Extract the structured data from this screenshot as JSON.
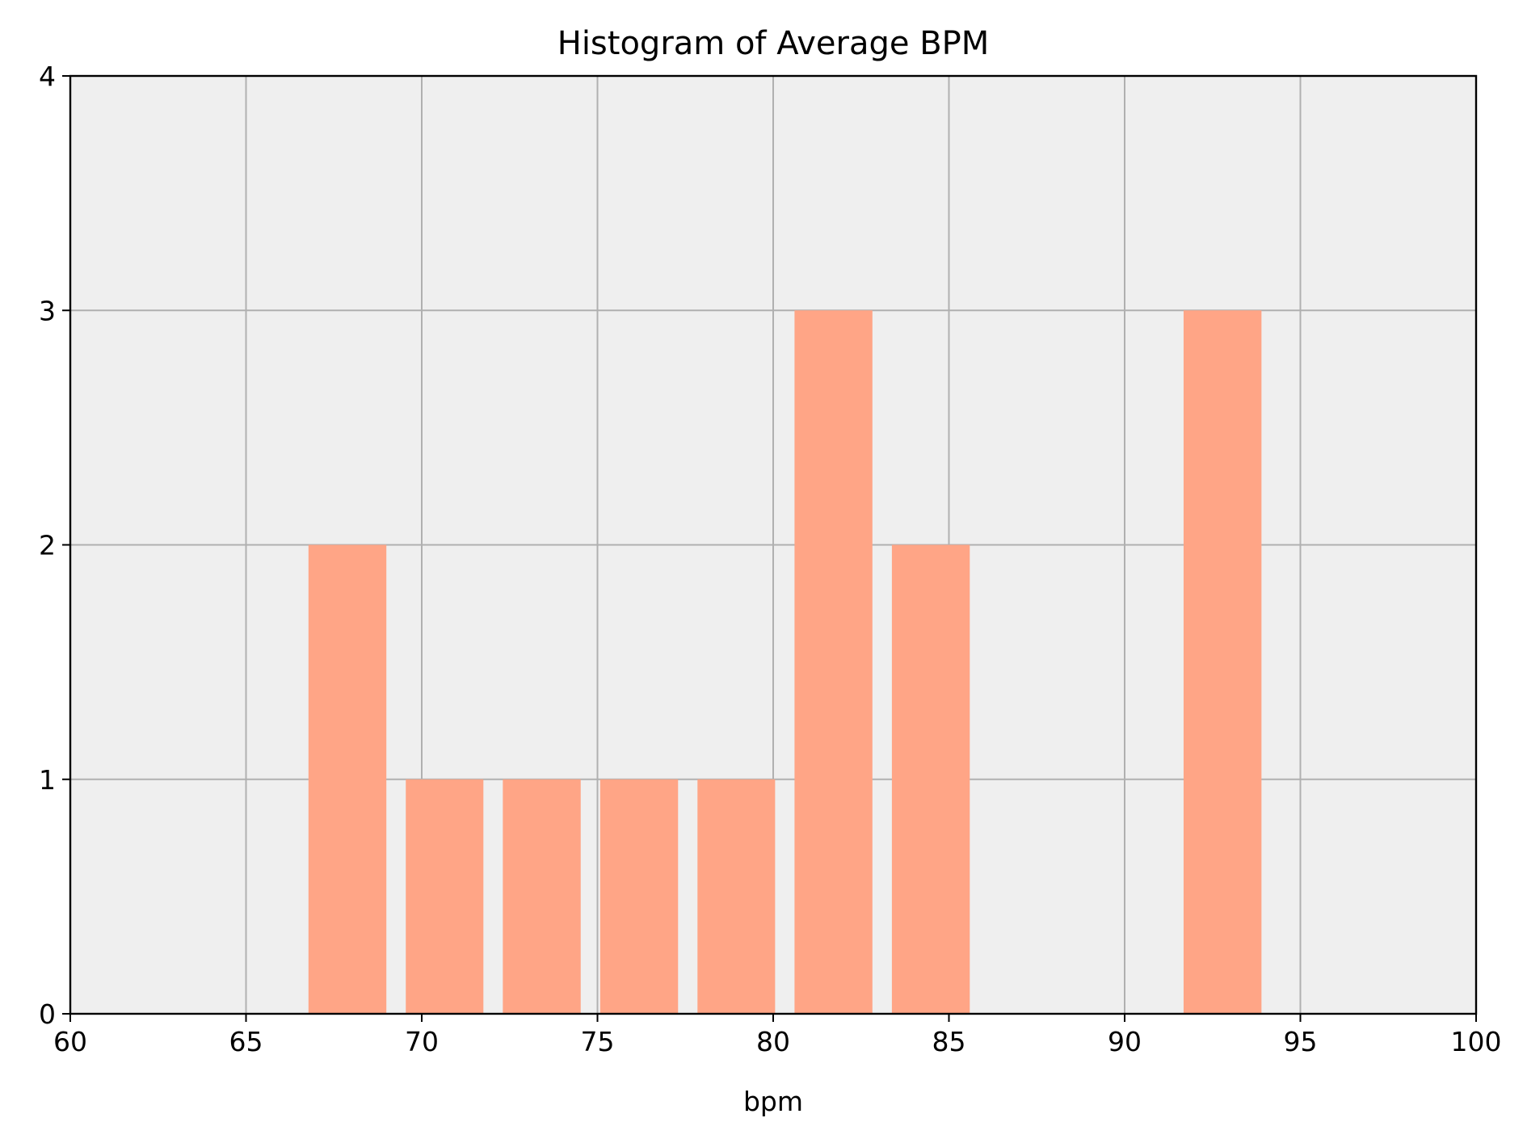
{
  "chart_data": {
    "type": "bar",
    "title": "Histogram of Average BPM",
    "xlabel": "bpm",
    "ylabel": "",
    "xlim": [
      60,
      100
    ],
    "ylim": [
      0,
      4
    ],
    "xticks": [
      "60",
      "65",
      "70",
      "75",
      "80",
      "85",
      "90",
      "95",
      "100"
    ],
    "yticks": [
      "0",
      "1",
      "2",
      "3",
      "4"
    ],
    "grid": true,
    "bin_edges": [
      66.5,
      69.27,
      72.03,
      74.8,
      77.57,
      80.33,
      83.1,
      85.87,
      88.63,
      91.4,
      94.17
    ],
    "counts": [
      2,
      1,
      1,
      1,
      1,
      3,
      2,
      0,
      0,
      3
    ],
    "colors": {
      "bar": "#FFA586",
      "plot_background": "#EFEFEF",
      "grid": "#B0B0B0",
      "axis": "#000000"
    }
  }
}
